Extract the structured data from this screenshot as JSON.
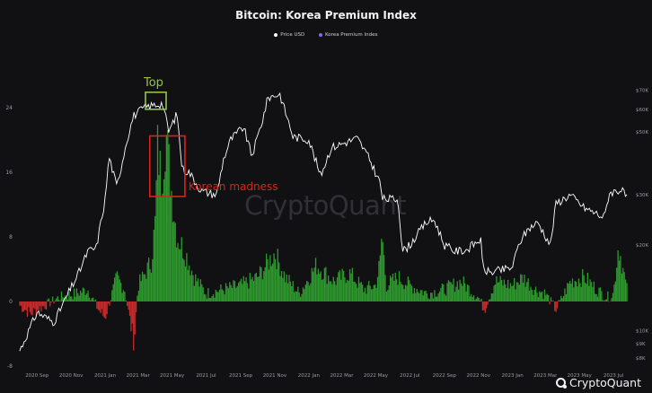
{
  "chart_data": {
    "type": "line",
    "title": "Bitcoin: Korea Premium Index",
    "legend": [
      {
        "name": "Price USD",
        "color": "#ffffff"
      },
      {
        "name": "Korea Premium Index",
        "color": "#7b6cff"
      }
    ],
    "legend_position": "top-center",
    "grid": false,
    "x_range": [
      "2020-08-01",
      "2023-07-25"
    ],
    "x_tick_labels": [
      "2020 Sep",
      "2020 Nov",
      "2021 Jan",
      "2021 Mar",
      "2021 May",
      "2021 Jul",
      "2021 Sep",
      "2021 Nov",
      "2022 Jan",
      "2022 Mar",
      "2022 May",
      "2022 Jul",
      "2022 Sep",
      "2022 Nov",
      "2023 Jan",
      "2023 Mar",
      "2023 May",
      "2023 Jul"
    ],
    "left_axis": {
      "ylim": [
        -8,
        30
      ],
      "ticks": [
        -8,
        0,
        8,
        16,
        24
      ]
    },
    "right_axis": {
      "scale": "log",
      "ylim": [
        7500,
        90000
      ],
      "ticks": [
        8000,
        9000,
        10000,
        20000,
        30000,
        50000,
        60000,
        70000
      ],
      "tick_labels": [
        "$8K",
        "$9K",
        "$10K",
        "$20K",
        "$30K",
        "$50K",
        "$60K",
        "$70K"
      ]
    },
    "series": [
      {
        "name": "Price USD",
        "color": "#ffffff",
        "axis": "right",
        "x": [
          "2020-08-01",
          "2020-09-01",
          "2020-10-01",
          "2020-10-21",
          "2020-11-15",
          "2020-12-01",
          "2020-12-16",
          "2021-01-01",
          "2021-01-08",
          "2021-01-22",
          "2021-02-08",
          "2021-02-21",
          "2021-03-13",
          "2021-04-14",
          "2021-04-25",
          "2021-05-10",
          "2021-05-19",
          "2021-06-01",
          "2021-06-22",
          "2021-07-20",
          "2021-08-01",
          "2021-08-14",
          "2021-09-06",
          "2021-09-21",
          "2021-10-10",
          "2021-10-20",
          "2021-11-10",
          "2021-12-04",
          "2022-01-01",
          "2022-01-22",
          "2022-02-10",
          "2022-03-29",
          "2022-04-20",
          "2022-05-09",
          "2022-05-13",
          "2022-06-10",
          "2022-06-18",
          "2022-07-01",
          "2022-07-30",
          "2022-08-14",
          "2022-09-01",
          "2022-09-20",
          "2022-10-10",
          "2022-11-05",
          "2022-11-09",
          "2022-11-21",
          "2022-12-31",
          "2023-01-14",
          "2023-01-31",
          "2023-02-16",
          "2023-03-10",
          "2023-03-20",
          "2023-04-14",
          "2023-05-10",
          "2023-06-15",
          "2023-06-23",
          "2023-07-14",
          "2023-07-25"
        ],
        "values": [
          8500,
          11600,
          10700,
          12800,
          16000,
          19000,
          19500,
          29000,
          41000,
          32000,
          46000,
          57000,
          61000,
          63000,
          50000,
          58000,
          37000,
          36000,
          31000,
          30000,
          40000,
          47000,
          52000,
          41000,
          55000,
          66000,
          68000,
          48000,
          47000,
          35000,
          44000,
          47500,
          40000,
          33000,
          29000,
          29000,
          19000,
          20000,
          24000,
          24500,
          20000,
          19000,
          19200,
          21000,
          16500,
          16000,
          16600,
          20500,
          23000,
          24000,
          20000,
          28000,
          30000,
          27000,
          25000,
          30500,
          31300,
          29500
        ]
      },
      {
        "name": "Korea Premium Index",
        "color": "#7b6cff",
        "axis": "left",
        "positive_color": "#2e9a2e",
        "negative_color": "#cc2b2b",
        "x": [
          "2020-08-01",
          "2020-08-20",
          "2020-09-15",
          "2020-10-10",
          "2020-11-10",
          "2020-12-01",
          "2020-12-20",
          "2021-01-01",
          "2021-01-05",
          "2021-01-22",
          "2021-02-05",
          "2021-02-16",
          "2021-02-22",
          "2021-03-01",
          "2021-03-10",
          "2021-03-25",
          "2021-04-01",
          "2021-04-05",
          "2021-04-12",
          "2021-04-20",
          "2021-05-01",
          "2021-05-10",
          "2021-05-25",
          "2021-06-10",
          "2021-07-01",
          "2021-08-01",
          "2021-09-01",
          "2021-10-01",
          "2021-11-01",
          "2021-11-20",
          "2021-12-15",
          "2022-01-15",
          "2022-02-15",
          "2022-03-15",
          "2022-04-10",
          "2022-05-01",
          "2022-05-09",
          "2022-05-12",
          "2022-05-20",
          "2022-06-10",
          "2022-07-01",
          "2022-08-01",
          "2022-09-01",
          "2022-10-01",
          "2022-11-01",
          "2022-11-12",
          "2022-12-01",
          "2023-01-01",
          "2023-01-20",
          "2023-02-10",
          "2023-03-01",
          "2023-03-20",
          "2023-04-15",
          "2023-05-10",
          "2023-06-01",
          "2023-06-20",
          "2023-07-01",
          "2023-07-10",
          "2023-07-25"
        ],
        "values": [
          -0.5,
          -1.5,
          -0.5,
          0.5,
          1,
          1.5,
          -1,
          -2,
          -1,
          3,
          1.5,
          -3,
          -5,
          2,
          3,
          5,
          10,
          19,
          15,
          21,
          13,
          8,
          6,
          3,
          1,
          1.5,
          2,
          3,
          6,
          3,
          1,
          4.5,
          2.5,
          3.5,
          1.5,
          2,
          5,
          8.5,
          2,
          3,
          2,
          1,
          1.5,
          2.5,
          0.5,
          -1,
          2.5,
          2,
          3,
          1.5,
          1,
          -1,
          2.5,
          3,
          1.5,
          0.5,
          1,
          7,
          1.5
        ]
      }
    ],
    "annotations": [
      {
        "text": "Top",
        "color": "#93c34a"
      },
      {
        "text": "Korean madness",
        "color": "#e0201c"
      }
    ],
    "watermark": "CryptoQuant",
    "brand": "CryptoQuant"
  }
}
